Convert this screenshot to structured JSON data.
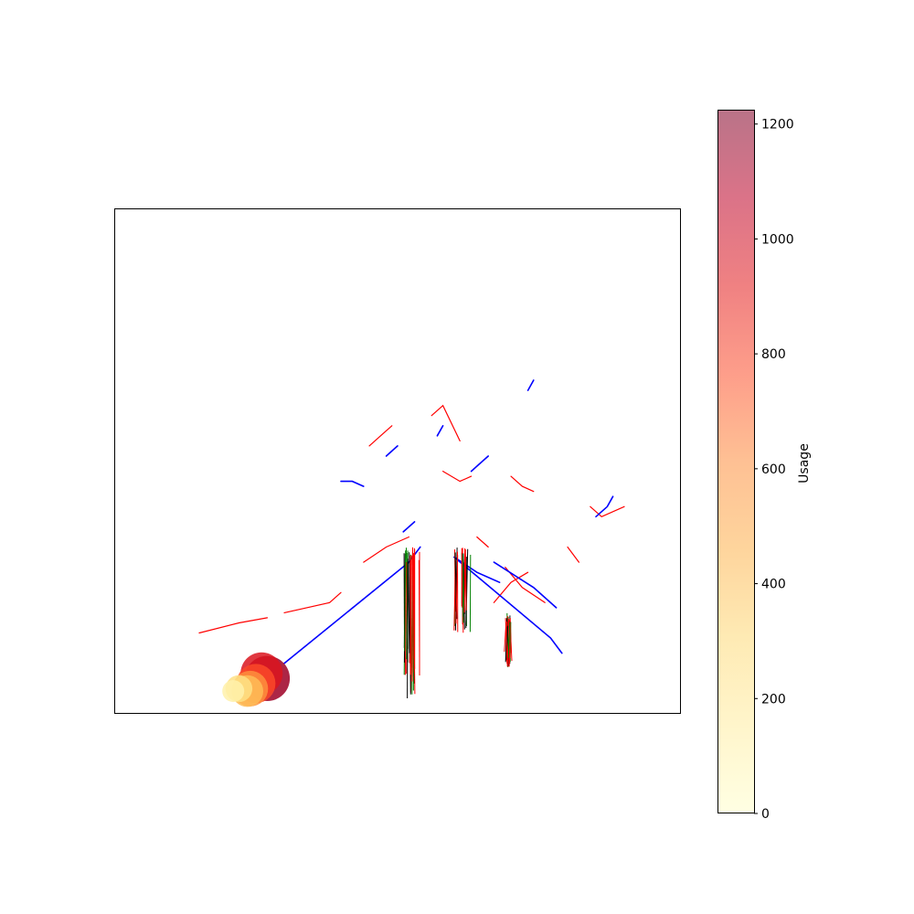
{
  "chart_data": {
    "type": "scatter",
    "description_kind": "network-usage-map",
    "axes_visible": false,
    "grid": false,
    "colorbar": {
      "label": "Usage",
      "min": 0,
      "max": 1225,
      "ticks": [
        0,
        200,
        400,
        600,
        800,
        1000,
        1200
      ],
      "tick_labels": [
        "0",
        "200",
        "400",
        "600",
        "800",
        "1000",
        "1200"
      ],
      "colormap": "YlOrRd",
      "alpha": 0.5,
      "stops": [
        "#ffffcc",
        "#ffeda0",
        "#fed976",
        "#feb24c",
        "#fd8d3c",
        "#fc4e2a",
        "#e31a1c",
        "#bd0026",
        "#800026"
      ]
    },
    "line_colors": {
      "primary": "#0000ff",
      "secondary": "#ff0000",
      "tertiary": "#008000",
      "minor": "#000000"
    },
    "usage_points": [
      {
        "x": 0.27,
        "y": 0.07,
        "usage": 1150
      },
      {
        "x": 0.26,
        "y": 0.08,
        "usage": 950
      },
      {
        "x": 0.25,
        "y": 0.06,
        "usage": 780
      },
      {
        "x": 0.24,
        "y": 0.05,
        "usage": 600
      },
      {
        "x": 0.235,
        "y": 0.045,
        "usage": 420
      },
      {
        "x": 0.22,
        "y": 0.05,
        "usage": 250
      },
      {
        "x": 0.21,
        "y": 0.045,
        "usage": 120
      }
    ],
    "blue_lines": [
      [
        [
          0.3,
          0.1
        ],
        [
          0.52,
          0.3
        ],
        [
          0.54,
          0.33
        ]
      ],
      [
        [
          0.6,
          0.31
        ],
        [
          0.77,
          0.15
        ],
        [
          0.79,
          0.12
        ]
      ],
      [
        [
          0.6,
          0.31
        ],
        [
          0.64,
          0.28
        ],
        [
          0.68,
          0.26
        ]
      ],
      [
        [
          0.67,
          0.3
        ],
        [
          0.74,
          0.25
        ],
        [
          0.78,
          0.21
        ]
      ],
      [
        [
          0.4,
          0.46
        ],
        [
          0.42,
          0.46
        ],
        [
          0.44,
          0.45
        ]
      ],
      [
        [
          0.48,
          0.51
        ],
        [
          0.49,
          0.52
        ],
        [
          0.5,
          0.53
        ]
      ],
      [
        [
          0.63,
          0.48
        ],
        [
          0.65,
          0.5
        ],
        [
          0.66,
          0.51
        ]
      ],
      [
        [
          0.85,
          0.39
        ],
        [
          0.87,
          0.41
        ],
        [
          0.88,
          0.43
        ]
      ],
      [
        [
          0.73,
          0.64
        ],
        [
          0.74,
          0.66
        ]
      ],
      [
        [
          0.57,
          0.55
        ],
        [
          0.58,
          0.57
        ]
      ],
      [
        [
          0.51,
          0.36
        ],
        [
          0.52,
          0.37
        ],
        [
          0.53,
          0.38
        ]
      ]
    ],
    "red_lines": [
      [
        [
          0.15,
          0.16
        ],
        [
          0.22,
          0.18
        ],
        [
          0.27,
          0.19
        ]
      ],
      [
        [
          0.3,
          0.2
        ],
        [
          0.38,
          0.22
        ],
        [
          0.4,
          0.24
        ]
      ],
      [
        [
          0.44,
          0.3
        ],
        [
          0.48,
          0.33
        ],
        [
          0.52,
          0.35
        ]
      ],
      [
        [
          0.56,
          0.59
        ],
        [
          0.58,
          0.61
        ],
        [
          0.61,
          0.54
        ]
      ],
      [
        [
          0.45,
          0.53
        ],
        [
          0.47,
          0.55
        ],
        [
          0.49,
          0.57
        ]
      ],
      [
        [
          0.58,
          0.48
        ],
        [
          0.61,
          0.46
        ],
        [
          0.63,
          0.47
        ]
      ],
      [
        [
          0.7,
          0.47
        ],
        [
          0.72,
          0.45
        ],
        [
          0.74,
          0.44
        ]
      ],
      [
        [
          0.67,
          0.22
        ],
        [
          0.7,
          0.26
        ],
        [
          0.73,
          0.28
        ]
      ],
      [
        [
          0.84,
          0.41
        ],
        [
          0.86,
          0.39
        ],
        [
          0.9,
          0.41
        ]
      ],
      [
        [
          0.69,
          0.29
        ],
        [
          0.72,
          0.25
        ],
        [
          0.76,
          0.22
        ]
      ],
      [
        [
          0.8,
          0.33
        ],
        [
          0.82,
          0.3
        ]
      ],
      [
        [
          0.64,
          0.35
        ],
        [
          0.66,
          0.33
        ]
      ]
    ],
    "vertical_clusters": [
      {
        "x0": 0.51,
        "x1": 0.54,
        "y_top": 0.33,
        "y_bottom": 0.03
      },
      {
        "x0": 0.6,
        "x1": 0.63,
        "y_top": 0.33,
        "y_bottom": 0.16
      },
      {
        "x0": 0.69,
        "x1": 0.7,
        "y_top": 0.2,
        "y_bottom": 0.09
      }
    ]
  }
}
